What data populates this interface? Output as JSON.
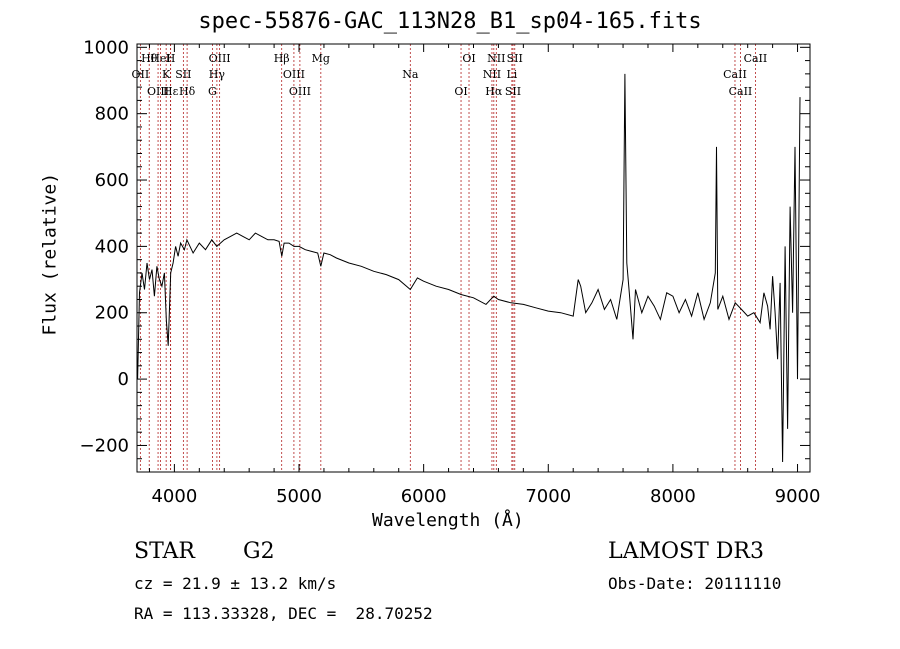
{
  "chart_data": {
    "type": "line",
    "title": "spec-55876-GAC_113N28_B1_sp04-165.fits",
    "xlabel": "Wavelength (Å)",
    "ylabel": "Flux (relative)",
    "xlim": [
      3700,
      9100
    ],
    "ylim": [
      -280,
      1010
    ],
    "xticks": [
      4000,
      5000,
      6000,
      7000,
      8000,
      9000
    ],
    "yticks": [
      -200,
      0,
      200,
      400,
      600,
      800,
      1000
    ],
    "grid": false,
    "lines": [
      {
        "label": "Hθ",
        "wl": 3798
      },
      {
        "label": "OII",
        "wl": 3727
      },
      {
        "label": "OIII",
        "wl": 3869
      },
      {
        "label": "HeI",
        "wl": 3889
      },
      {
        "label": "K",
        "wl": 3934
      },
      {
        "label": "Hε",
        "wl": 3970
      },
      {
        "label": "H",
        "wl": 3969
      },
      {
        "label": "SII",
        "wl": 4072
      },
      {
        "label": "Hδ",
        "wl": 4102
      },
      {
        "label": "OIII",
        "wl": 4363
      },
      {
        "label": "Hγ",
        "wl": 4341
      },
      {
        "label": "G",
        "wl": 4305
      },
      {
        "label": "Hβ",
        "wl": 4861
      },
      {
        "label": "OIII",
        "wl": 4959
      },
      {
        "label": "OIII",
        "wl": 5007
      },
      {
        "label": "Mg",
        "wl": 5175
      },
      {
        "label": "Na",
        "wl": 5893
      },
      {
        "label": "OI",
        "wl": 6300
      },
      {
        "label": "OI",
        "wl": 6364
      },
      {
        "label": "NII",
        "wl": 6548
      },
      {
        "label": "Hα",
        "wl": 6563
      },
      {
        "label": "NII",
        "wl": 6583
      },
      {
        "label": "Li",
        "wl": 6708
      },
      {
        "label": "SII",
        "wl": 6717
      },
      {
        "label": "SII",
        "wl": 6731
      },
      {
        "label": "CaII",
        "wl": 8498
      },
      {
        "label": "CaII",
        "wl": 8542
      },
      {
        "label": "CaII",
        "wl": 8662
      }
    ],
    "series": [
      {
        "name": "flux",
        "x": [
          3705,
          3720,
          3740,
          3760,
          3780,
          3800,
          3820,
          3840,
          3860,
          3880,
          3900,
          3920,
          3935,
          3950,
          3970,
          3990,
          4010,
          4030,
          4050,
          4080,
          4100,
          4150,
          4200,
          4250,
          4300,
          4340,
          4400,
          4450,
          4500,
          4550,
          4600,
          4650,
          4700,
          4750,
          4800,
          4840,
          4862,
          4880,
          4920,
          4960,
          5000,
          5050,
          5100,
          5150,
          5175,
          5200,
          5250,
          5300,
          5400,
          5500,
          5600,
          5700,
          5800,
          5893,
          5950,
          6000,
          6100,
          6200,
          6300,
          6400,
          6500,
          6563,
          6600,
          6700,
          6800,
          6900,
          7000,
          7100,
          7200,
          7240,
          7260,
          7300,
          7350,
          7400,
          7450,
          7500,
          7550,
          7600,
          7615,
          7630,
          7650,
          7680,
          7700,
          7750,
          7800,
          7850,
          7900,
          7950,
          8000,
          8050,
          8100,
          8150,
          8200,
          8250,
          8300,
          8340,
          8350,
          8360,
          8400,
          8450,
          8500,
          8550,
          8600,
          8650,
          8700,
          8730,
          8760,
          8780,
          8800,
          8820,
          8840,
          8860,
          8880,
          8900,
          8920,
          8940,
          8960,
          8980,
          9000,
          9020
        ],
        "y": [
          0,
          260,
          320,
          270,
          350,
          300,
          330,
          250,
          340,
          300,
          280,
          320,
          180,
          100,
          320,
          350,
          400,
          370,
          410,
          390,
          420,
          380,
          410,
          390,
          420,
          400,
          420,
          430,
          440,
          430,
          420,
          440,
          430,
          420,
          420,
          415,
          370,
          410,
          410,
          400,
          400,
          390,
          385,
          380,
          340,
          380,
          375,
          365,
          350,
          340,
          325,
          315,
          300,
          270,
          305,
          295,
          280,
          270,
          255,
          245,
          225,
          250,
          240,
          230,
          225,
          215,
          205,
          200,
          190,
          300,
          280,
          200,
          230,
          270,
          210,
          240,
          180,
          300,
          920,
          350,
          260,
          120,
          270,
          200,
          250,
          220,
          180,
          260,
          250,
          200,
          240,
          190,
          260,
          180,
          230,
          320,
          700,
          210,
          250,
          180,
          230,
          210,
          190,
          200,
          170,
          260,
          220,
          150,
          310,
          200,
          60,
          290,
          -250,
          400,
          -150,
          520,
          200,
          700,
          0,
          850
        ]
      }
    ],
    "annotations": {
      "object": "STAR",
      "subclass": "G2",
      "survey": "LAMOST DR3",
      "cz": "cz = 21.9 ± 13.2 km/s",
      "obs_date": "Obs-Date: 20111110",
      "coords": "RA = 113.33328, DEC =  28.70252"
    }
  }
}
